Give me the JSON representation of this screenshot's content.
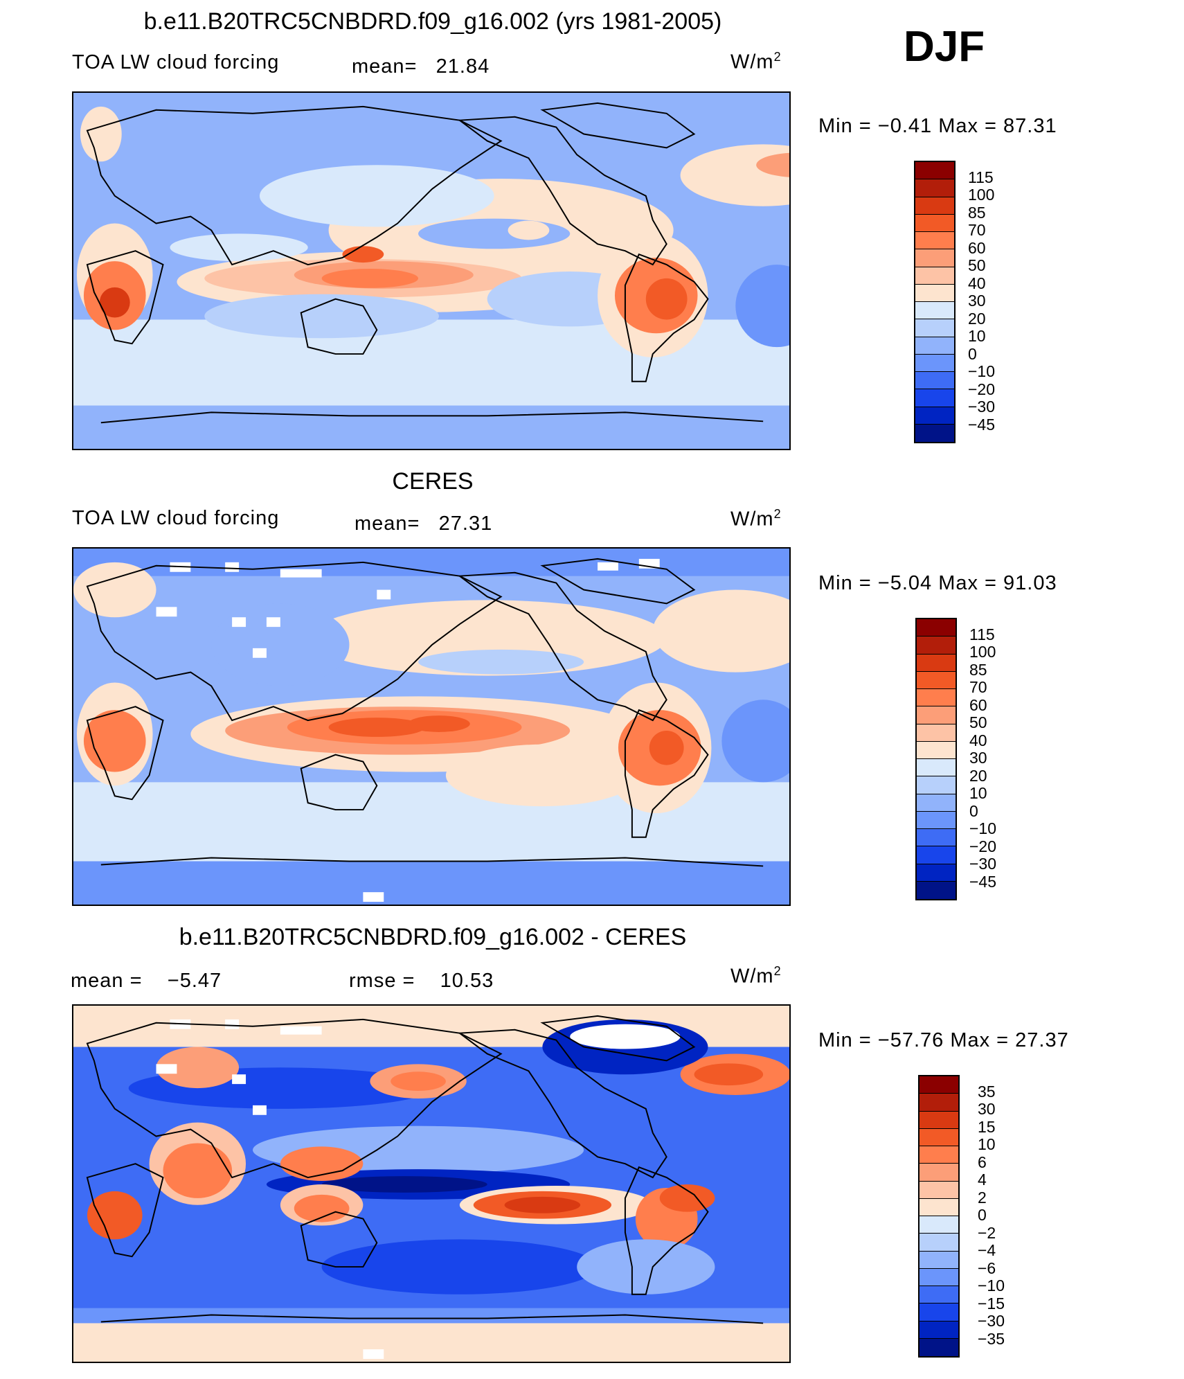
{
  "season": "DJF",
  "units": {
    "base": "W/m",
    "exp": "2"
  },
  "panels": [
    {
      "title": "b.e11.B20TRC5CNBDRD.f09_g16.002 (yrs 1981-2005)",
      "variable": "TOA LW cloud forcing",
      "stat1_label": "mean=",
      "stat1_value": "21.84",
      "minmax_text": "Min =   −0.41  Max =   87.31",
      "colorbar": {
        "labels": [
          "115",
          "100",
          "85",
          "70",
          "60",
          "50",
          "40",
          "30",
          "20",
          "10",
          "0",
          "−10",
          "−20",
          "−30",
          "−45"
        ],
        "colors": [
          "#8b0000",
          "#b21e0a",
          "#d93a12",
          "#f25a26",
          "#ff7e4d",
          "#fc9e78",
          "#fdc3a6",
          "#fde4cf",
          "#d9e9fb",
          "#b7d0fb",
          "#91b3fb",
          "#6b95fb",
          "#3e6cf5",
          "#1845eb",
          "#0024c2",
          "#001388"
        ]
      }
    },
    {
      "title": "CERES",
      "variable": "TOA LW cloud forcing",
      "stat1_label": "mean=",
      "stat1_value": "27.31",
      "minmax_text": "Min =   −5.04  Max =   91.03",
      "colorbar": {
        "labels": [
          "115",
          "100",
          "85",
          "70",
          "60",
          "50",
          "40",
          "30",
          "20",
          "10",
          "0",
          "−10",
          "−20",
          "−30",
          "−45"
        ],
        "colors": [
          "#8b0000",
          "#b21e0a",
          "#d93a12",
          "#f25a26",
          "#ff7e4d",
          "#fc9e78",
          "#fdc3a6",
          "#fde4cf",
          "#d9e9fb",
          "#b7d0fb",
          "#91b3fb",
          "#6b95fb",
          "#3e6cf5",
          "#1845eb",
          "#0024c2",
          "#001388"
        ]
      }
    },
    {
      "title": "b.e11.B20TRC5CNBDRD.f09_g16.002 - CERES",
      "stat1_label": "mean =",
      "stat1_value": "−5.47",
      "stat2_label": "rmse =",
      "stat2_value": "10.53",
      "minmax_text": "Min = −57.76  Max =   27.37",
      "colorbar": {
        "labels": [
          "35",
          "30",
          "15",
          "10",
          "6",
          "4",
          "2",
          "0",
          "−2",
          "−4",
          "−6",
          "−10",
          "−15",
          "−30",
          "−35"
        ],
        "colors": [
          "#8b0000",
          "#b21e0a",
          "#d93a12",
          "#f25a26",
          "#ff7e4d",
          "#fc9e78",
          "#fdc3a6",
          "#fde4cf",
          "#d9e9fb",
          "#b7d0fb",
          "#91b3fb",
          "#6b95fb",
          "#3e6cf5",
          "#1845eb",
          "#0024c2",
          "#001388"
        ]
      }
    }
  ]
}
